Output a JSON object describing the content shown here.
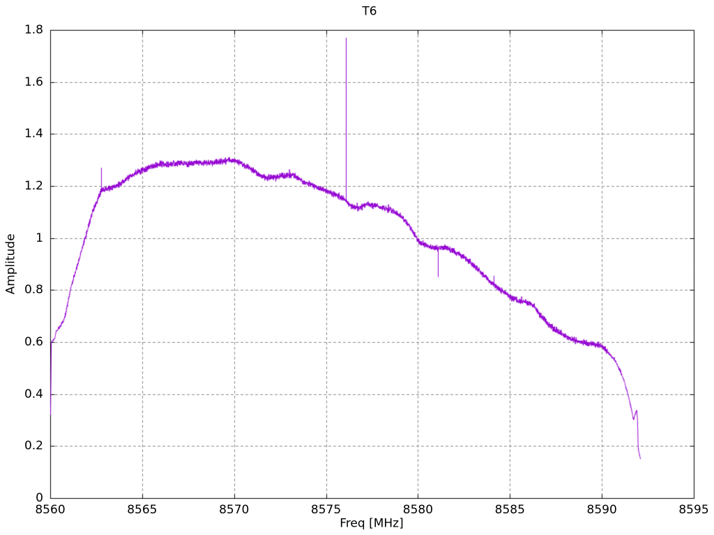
{
  "chart_data": {
    "type": "line",
    "title": "T6",
    "xlabel": "Freq [MHz]",
    "ylabel": "Amplitude",
    "xlim": [
      8560,
      8595
    ],
    "ylim": [
      0,
      1.8
    ],
    "xticks": [
      8560,
      8565,
      8570,
      8575,
      8580,
      8585,
      8590,
      8595
    ],
    "yticks": [
      0,
      0.2,
      0.4,
      0.6,
      0.8,
      1.0,
      1.2,
      1.4,
      1.6,
      1.8
    ],
    "ytick_labels": [
      "0",
      "0.2",
      "0.4",
      "0.6",
      "0.8",
      "1",
      "1.2",
      "1.4",
      "1.6",
      "1.8"
    ],
    "grid": true,
    "legend_position": "none",
    "colors": {
      "line": "#9400d3",
      "grid": "#8c8c8c",
      "border": "#000000",
      "background": "#ffffff"
    },
    "series": [
      {
        "name": "T6",
        "color": "#9400d3",
        "noise_band": 0.016,
        "profile": [
          [
            8560.02,
            0.32
          ],
          [
            8560.06,
            0.6
          ],
          [
            8560.15,
            0.605
          ],
          [
            8560.25,
            0.615
          ],
          [
            8560.32,
            0.64
          ],
          [
            8560.5,
            0.655
          ],
          [
            8560.8,
            0.695
          ],
          [
            8561.1,
            0.8
          ],
          [
            8561.5,
            0.9
          ],
          [
            8561.9,
            1.0
          ],
          [
            8562.3,
            1.1
          ],
          [
            8562.75,
            1.18
          ],
          [
            8563.2,
            1.19
          ],
          [
            8563.6,
            1.2
          ],
          [
            8564.0,
            1.22
          ],
          [
            8564.5,
            1.245
          ],
          [
            8565.0,
            1.26
          ],
          [
            8565.5,
            1.275
          ],
          [
            8566.0,
            1.285
          ],
          [
            8566.5,
            1.283
          ],
          [
            8567.0,
            1.288
          ],
          [
            8567.5,
            1.285
          ],
          [
            8568.0,
            1.29
          ],
          [
            8568.5,
            1.288
          ],
          [
            8569.0,
            1.29
          ],
          [
            8569.5,
            1.295
          ],
          [
            8569.8,
            1.3
          ],
          [
            8570.2,
            1.293
          ],
          [
            8570.6,
            1.278
          ],
          [
            8571.0,
            1.262
          ],
          [
            8571.4,
            1.243
          ],
          [
            8571.8,
            1.23
          ],
          [
            8572.2,
            1.235
          ],
          [
            8572.6,
            1.24
          ],
          [
            8573.2,
            1.24
          ],
          [
            8573.6,
            1.226
          ],
          [
            8574.0,
            1.21
          ],
          [
            8574.7,
            1.19
          ],
          [
            8575.1,
            1.178
          ],
          [
            8575.5,
            1.168
          ],
          [
            8576.0,
            1.15
          ],
          [
            8576.4,
            1.12
          ],
          [
            8576.8,
            1.115
          ],
          [
            8577.2,
            1.13
          ],
          [
            8577.6,
            1.125
          ],
          [
            8578.0,
            1.118
          ],
          [
            8578.4,
            1.11
          ],
          [
            8578.8,
            1.098
          ],
          [
            8579.2,
            1.075
          ],
          [
            8579.5,
            1.05
          ],
          [
            8579.8,
            1.015
          ],
          [
            8580.0,
            0.99
          ],
          [
            8580.3,
            0.975
          ],
          [
            8580.7,
            0.965
          ],
          [
            8581.1,
            0.96
          ],
          [
            8581.5,
            0.962
          ],
          [
            8581.9,
            0.952
          ],
          [
            8582.3,
            0.935
          ],
          [
            8582.7,
            0.915
          ],
          [
            8583.1,
            0.89
          ],
          [
            8583.5,
            0.862
          ],
          [
            8583.9,
            0.835
          ],
          [
            8584.3,
            0.81
          ],
          [
            8584.7,
            0.79
          ],
          [
            8585.1,
            0.77
          ],
          [
            8585.5,
            0.758
          ],
          [
            8585.9,
            0.752
          ],
          [
            8586.3,
            0.74
          ],
          [
            8586.7,
            0.7
          ],
          [
            8587.0,
            0.675
          ],
          [
            8587.4,
            0.65
          ],
          [
            8587.8,
            0.632
          ],
          [
            8588.2,
            0.615
          ],
          [
            8588.6,
            0.605
          ],
          [
            8589.0,
            0.597
          ],
          [
            8589.4,
            0.592
          ],
          [
            8589.8,
            0.588
          ],
          [
            8590.1,
            0.578
          ],
          [
            8590.4,
            0.555
          ],
          [
            8590.7,
            0.53
          ],
          [
            8591.0,
            0.49
          ],
          [
            8591.2,
            0.452
          ],
          [
            8591.4,
            0.405
          ],
          [
            8591.6,
            0.345
          ],
          [
            8591.72,
            0.3
          ],
          [
            8591.82,
            0.325
          ],
          [
            8591.9,
            0.335
          ],
          [
            8591.94,
            0.3
          ],
          [
            8591.98,
            0.19
          ],
          [
            8592.05,
            0.165
          ],
          [
            8592.1,
            0.15
          ]
        ],
        "spikes": [
          [
            8562.77,
            1.27
          ],
          [
            8576.08,
            1.77
          ],
          [
            8581.1,
            0.85
          ],
          [
            8584.1,
            0.855
          ]
        ]
      }
    ]
  }
}
